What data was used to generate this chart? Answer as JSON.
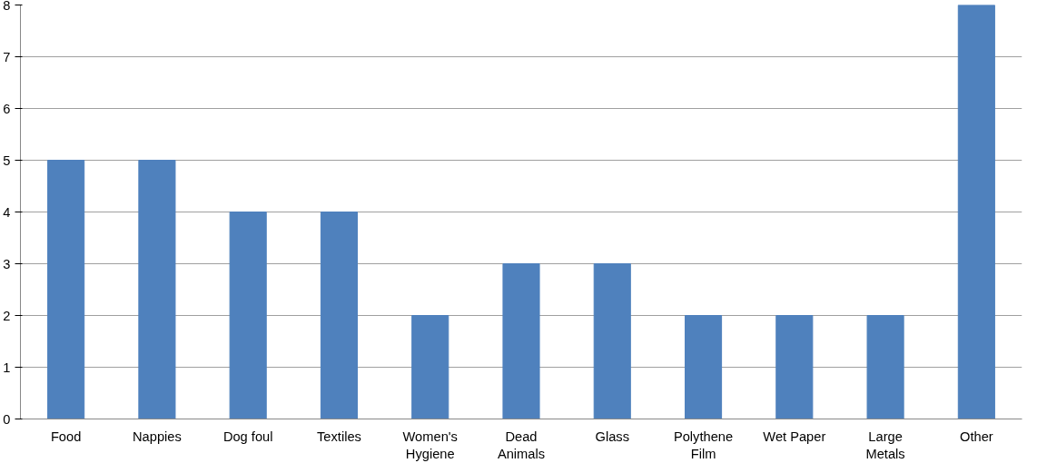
{
  "chart_data": {
    "type": "bar",
    "categories": [
      "Food",
      "Nappies",
      "Dog foul",
      "Textiles",
      "Women's Hygiene",
      "Dead Animals",
      "Glass",
      "Polythene Film",
      "Wet Paper",
      "Large Metals",
      "Other"
    ],
    "values": [
      5,
      5,
      4,
      4,
      2,
      3,
      3,
      2,
      2,
      2,
      8
    ],
    "color": "#4f81bd",
    "ylim": [
      0,
      8
    ],
    "yticks": [
      0,
      1,
      2,
      3,
      4,
      5,
      6,
      7,
      8
    ],
    "grid": "y"
  }
}
